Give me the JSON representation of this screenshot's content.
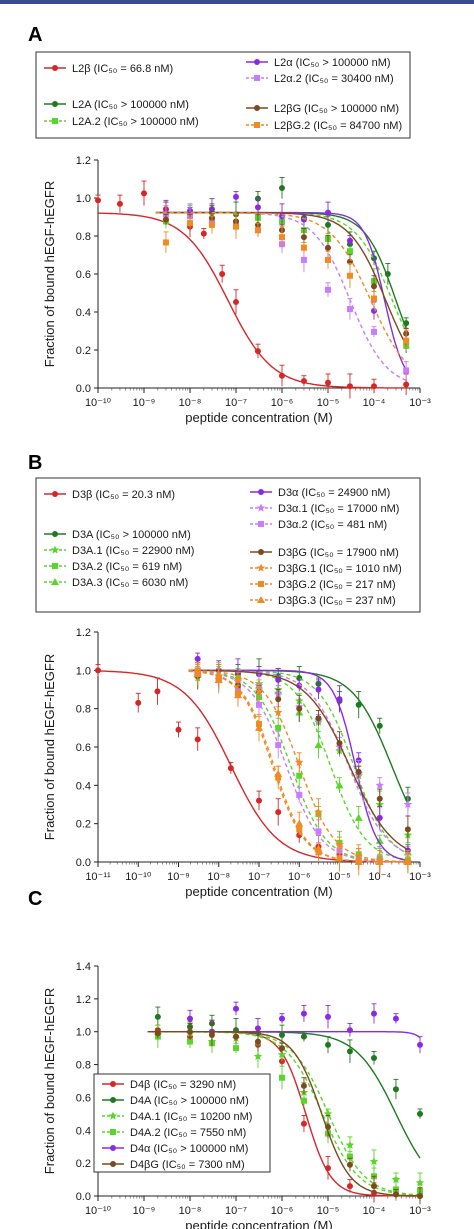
{
  "colors": {
    "red": "#d62728",
    "green": "#1f7a1f",
    "lightgreen": "#5ad52a",
    "purple": "#8a2be2",
    "lilac": "#c77dff",
    "brown": "#7b4a1e",
    "orange": "#f08a24",
    "topbar": "#3a4a8a"
  },
  "chart_data": [
    {
      "panel": "A",
      "type": "scatter",
      "xlabel": "peptide concentration (M)",
      "ylabel": "Fraction of bound hEGF-hEGFR",
      "xscale": "log",
      "xlim": [
        1e-10,
        0.001
      ],
      "ylim": [
        0,
        1.3
      ],
      "yticks": [
        "0.0",
        "0.2",
        "0.4",
        "0.6",
        "0.8",
        "1.0",
        "1.2"
      ],
      "xticks": [
        "10⁻¹⁰",
        "10⁻⁹",
        "10⁻⁸",
        "10⁻⁷",
        "10⁻⁶",
        "10⁻⁵",
        "10⁻⁴",
        "10⁻³"
      ],
      "series": [
        {
          "name": "L2β (IC₅₀ = 66.8 nM)",
          "color_key": "red",
          "marker": "circle",
          "dashed": false,
          "ic50_nM": 66.8,
          "hill": 0.9,
          "x": [
            1e-10,
            3e-10,
            1e-09,
            3e-09,
            1e-08,
            2e-08,
            5e-08,
            1e-07,
            3e-07,
            1e-06,
            3e-06,
            1e-05,
            3e-05,
            0.0001,
            0.0005
          ],
          "y": [
            1.07,
            1.05,
            1.11,
            1.02,
            0.92,
            0.88,
            0.65,
            0.49,
            0.21,
            0.07,
            0.04,
            0.03,
            0.01,
            0.01,
            0.02
          ]
        },
        {
          "name": "L2A (IC₅₀ > 100000 nM)",
          "color_key": "green",
          "marker": "circle",
          "dashed": false,
          "ic50_nM": 300000,
          "hill": 1.3,
          "x": [
            3e-09,
            1e-08,
            3e-08,
            1e-07,
            3e-07,
            1e-06,
            3e-06,
            1e-05,
            3e-05,
            0.0001,
            0.0002,
            0.0005
          ],
          "y": [
            1.0,
            1.0,
            1.0,
            0.99,
            1.08,
            1.14,
            0.97,
            0.93,
            0.82,
            0.74,
            0.65,
            0.37
          ]
        },
        {
          "name": "L2A.2 (IC₅₀ > 100000 nM)",
          "color_key": "lightgreen",
          "marker": "square",
          "dashed": true,
          "ic50_nM": 250000,
          "hill": 1.1,
          "x": [
            3e-09,
            1e-08,
            3e-08,
            1e-07,
            3e-07,
            1e-06,
            3e-06,
            1e-05,
            3e-05,
            0.0001,
            0.0005
          ],
          "y": [
            0.95,
            0.98,
            0.96,
            0.94,
            0.97,
            0.95,
            0.9,
            0.85,
            0.78,
            0.61,
            0.24
          ]
        },
        {
          "name": "L2α (IC₅₀ > 100000 nM)",
          "color_key": "purple",
          "marker": "circle",
          "dashed": false,
          "ic50_nM": 170000,
          "hill": 2.0,
          "x": [
            3e-09,
            1e-08,
            3e-08,
            1e-07,
            3e-07,
            1e-06,
            3e-06,
            1e-05,
            3e-05,
            0.0001,
            0.0005
          ],
          "y": [
            1.0,
            1.01,
            1.02,
            1.09,
            1.03,
            0.98,
            0.96,
            1.0,
            0.84,
            0.44,
            0.27
          ]
        },
        {
          "name": "L2α.2 (IC₅₀ = 30400 nM)",
          "color_key": "lilac",
          "marker": "square",
          "dashed": true,
          "ic50_nM": 30400,
          "hill": 1.1,
          "x": [
            3e-09,
            1e-08,
            3e-08,
            1e-07,
            3e-07,
            1e-06,
            3e-06,
            1e-05,
            3e-05,
            0.0001,
            0.0005
          ],
          "y": [
            0.99,
            0.98,
            0.96,
            0.94,
            0.9,
            0.82,
            0.73,
            0.56,
            0.45,
            0.32,
            0.1
          ]
        },
        {
          "name": "L2βG (IC₅₀ > 100000 nM)",
          "color_key": "brown",
          "marker": "circle",
          "dashed": false,
          "ic50_nM": 180000,
          "hill": 1.1,
          "x": [
            3e-09,
            1e-08,
            3e-08,
            1e-07,
            3e-07,
            1e-06,
            3e-06,
            1e-05,
            3e-05,
            0.0001,
            0.0005
          ],
          "y": [
            0.96,
            0.94,
            0.97,
            0.95,
            0.93,
            0.9,
            0.86,
            0.8,
            0.72,
            0.58,
            0.31
          ]
        },
        {
          "name": "L2βG.2 (IC₅₀ = 84700 nM)",
          "color_key": "orange",
          "marker": "square",
          "dashed": true,
          "ic50_nM": 84700,
          "hill": 1.0,
          "x": [
            3e-09,
            1e-08,
            3e-08,
            1e-07,
            3e-07,
            1e-06,
            3e-06,
            1e-05,
            3e-05,
            0.0001,
            0.0005
          ],
          "y": [
            0.83,
            0.94,
            0.93,
            0.92,
            0.9,
            0.86,
            0.8,
            0.73,
            0.64,
            0.51,
            0.27
          ]
        }
      ]
    },
    {
      "panel": "B",
      "type": "scatter",
      "xlabel": "peptide concentration (M)",
      "ylabel": "Fraction of bound hEGF-hEGFR",
      "xscale": "log",
      "xlim": [
        1e-11,
        0.001
      ],
      "ylim": [
        0,
        1.2
      ],
      "yticks": [
        "0.0",
        "0.2",
        "0.4",
        "0.6",
        "0.8",
        "1.0",
        "1.2"
      ],
      "xticks": [
        "10⁻¹¹",
        "10⁻¹⁰",
        "10⁻⁹",
        "10⁻⁸",
        "10⁻⁷",
        "10⁻⁶",
        "10⁻⁵",
        "10⁻⁴",
        "10⁻³"
      ],
      "series": [
        {
          "name": "D3β (IC₅₀ = 20.3 nM)",
          "color_key": "red",
          "marker": "circle",
          "dashed": false,
          "ic50_nM": 20.3,
          "hill": 0.75,
          "x": [
            1e-11,
            1e-10,
            3e-10,
            1e-09,
            3e-09,
            2e-08,
            1e-07,
            3e-07,
            1e-06,
            3e-06,
            1e-05,
            3e-05,
            0.0001,
            0.0005
          ],
          "y": [
            1.0,
            0.83,
            0.89,
            0.69,
            0.64,
            0.49,
            0.32,
            0.26,
            0.14,
            0.08,
            0.04,
            0.02,
            0.01,
            0.0
          ]
        },
        {
          "name": "D3A (IC₅₀ > 100000 nM)",
          "color_key": "green",
          "marker": "circle",
          "dashed": false,
          "ic50_nM": 200000,
          "hill": 0.9,
          "x": [
            3e-09,
            1e-08,
            3e-08,
            1e-07,
            3e-07,
            1e-06,
            3e-06,
            1e-05,
            3e-05,
            0.0001,
            0.0005
          ],
          "y": [
            1.0,
            1.0,
            0.98,
            0.99,
            0.97,
            0.96,
            0.93,
            0.84,
            0.82,
            0.71,
            0.33
          ]
        },
        {
          "name": "D3A.1 (IC₅₀ = 22900 nM)",
          "color_key": "lightgreen",
          "marker": "star",
          "dashed": true,
          "ic50_nM": 22900,
          "hill": 1.0,
          "x": [
            3e-09,
            1e-08,
            3e-08,
            1e-07,
            3e-07,
            1e-06,
            3e-06,
            1e-05,
            3e-05,
            0.0001,
            0.0005
          ],
          "y": [
            0.96,
            0.97,
            0.95,
            0.93,
            0.9,
            0.84,
            0.73,
            0.58,
            0.45,
            0.3,
            0.14
          ]
        },
        {
          "name": "D3A.2 (IC₅₀ = 619 nM)",
          "color_key": "lightgreen",
          "marker": "square",
          "dashed": true,
          "ic50_nM": 619,
          "hill": 1.0,
          "x": [
            3e-09,
            1e-08,
            3e-08,
            1e-07,
            3e-07,
            1e-06,
            3e-06,
            1e-05,
            3e-05,
            0.0001,
            0.0005
          ],
          "y": [
            0.98,
            0.96,
            0.92,
            0.86,
            0.7,
            0.45,
            0.25,
            0.1,
            0.04,
            0.02,
            0.01
          ]
        },
        {
          "name": "D3A.3 (IC₅₀ = 6030 nM)",
          "color_key": "lightgreen",
          "marker": "triangle",
          "dashed": true,
          "ic50_nM": 6030,
          "hill": 1.0,
          "x": [
            3e-09,
            1e-08,
            3e-08,
            1e-07,
            3e-07,
            1e-06,
            3e-06,
            1e-05,
            3e-05,
            0.0001,
            0.0005
          ],
          "y": [
            0.99,
            0.95,
            0.97,
            0.92,
            0.89,
            0.78,
            0.61,
            0.4,
            0.23,
            0.11,
            0.05
          ]
        },
        {
          "name": "D3α (IC₅₀ = 24900 nM)",
          "color_key": "purple",
          "marker": "circle",
          "dashed": false,
          "ic50_nM": 24900,
          "hill": 1.6,
          "x": [
            3e-09,
            1e-08,
            3e-08,
            1e-07,
            3e-07,
            1e-06,
            3e-06,
            1e-05,
            3e-05,
            0.0001,
            0.0005
          ],
          "y": [
            1.06,
            1.0,
            0.99,
            0.98,
            0.95,
            0.92,
            0.9,
            0.85,
            0.53,
            0.23,
            0.06
          ]
        },
        {
          "name": "D3α.1 (IC₅₀ = 17000 nM)",
          "color_key": "lilac",
          "marker": "star",
          "dashed": true,
          "ic50_nM": 17000,
          "hill": 0.9,
          "x": [
            3e-09,
            1e-08,
            3e-08,
            1e-07,
            3e-07,
            1e-06,
            3e-06,
            1e-05,
            3e-05,
            0.0001,
            0.0005
          ],
          "y": [
            0.98,
            0.95,
            0.94,
            0.92,
            0.88,
            0.81,
            0.74,
            0.6,
            0.46,
            0.4,
            0.3
          ]
        },
        {
          "name": "D3α.2 (IC₅₀ = 481 nM)",
          "color_key": "lilac",
          "marker": "square",
          "dashed": true,
          "ic50_nM": 481,
          "hill": 1.0,
          "x": [
            3e-09,
            1e-08,
            3e-08,
            1e-07,
            3e-07,
            1e-06,
            3e-06,
            1e-05,
            3e-05,
            0.0001,
            0.0005
          ],
          "y": [
            0.98,
            0.95,
            0.91,
            0.82,
            0.61,
            0.35,
            0.16,
            0.06,
            0.02,
            0.01,
            0.0
          ]
        },
        {
          "name": "D3βG (IC₅₀ = 17900 nM)",
          "color_key": "brown",
          "marker": "circle",
          "dashed": false,
          "ic50_nM": 17900,
          "hill": 0.8,
          "x": [
            3e-09,
            1e-08,
            3e-08,
            1e-07,
            3e-07,
            1e-06,
            3e-06,
            1e-05,
            3e-05,
            0.0001,
            0.0005
          ],
          "y": [
            0.97,
            0.96,
            0.92,
            0.89,
            0.85,
            0.8,
            0.75,
            0.62,
            0.47,
            0.33,
            0.17
          ]
        },
        {
          "name": "D3βG.1 (IC₅₀ = 1010 nM)",
          "color_key": "orange",
          "marker": "star",
          "dashed": true,
          "ic50_nM": 1010,
          "hill": 1.0,
          "x": [
            3e-09,
            1e-08,
            3e-08,
            1e-07,
            3e-07,
            1e-06,
            3e-06,
            1e-05,
            3e-05,
            0.0001,
            0.0005
          ],
          "y": [
            0.99,
            0.97,
            0.95,
            0.89,
            0.78,
            0.52,
            0.26,
            0.09,
            0.03,
            0.01,
            0.0
          ]
        },
        {
          "name": "D3βG.2 (IC₅₀ = 217 nM)",
          "color_key": "orange",
          "marker": "square",
          "dashed": true,
          "ic50_nM": 217,
          "hill": 1.1,
          "x": [
            3e-09,
            1e-08,
            3e-08,
            1e-07,
            3e-07,
            1e-06,
            3e-06,
            1e-05,
            3e-05,
            0.0001,
            0.0005
          ],
          "y": [
            1.0,
            0.96,
            0.88,
            0.72,
            0.44,
            0.17,
            0.05,
            0.02,
            0.0,
            0.0,
            0.0
          ]
        },
        {
          "name": "D3βG.3 (IC₅₀ = 237 nM)",
          "color_key": "orange",
          "marker": "triangle",
          "dashed": true,
          "ic50_nM": 237,
          "hill": 1.1,
          "x": [
            3e-09,
            1e-08,
            3e-08,
            1e-07,
            3e-07,
            1e-06,
            3e-06,
            1e-05,
            3e-05,
            0.0001,
            0.0005
          ],
          "y": [
            0.98,
            0.95,
            0.87,
            0.7,
            0.46,
            0.2,
            0.07,
            0.02,
            0.0,
            0.0,
            0.0
          ]
        }
      ]
    },
    {
      "panel": "C",
      "type": "scatter",
      "xlabel": "peptide concentration (M)",
      "ylabel": "Fraction of bound hEGF-hEGFR",
      "xscale": "log",
      "xlim": [
        1e-10,
        0.001
      ],
      "ylim": [
        0,
        1.4
      ],
      "yticks": [
        "0.0",
        "0.2",
        "0.4",
        "0.6",
        "0.8",
        "1.0",
        "1.2",
        "1.4"
      ],
      "xticks": [
        "10⁻¹⁰",
        "10⁻⁹",
        "10⁻⁸",
        "10⁻⁷",
        "10⁻⁶",
        "10⁻⁵",
        "10⁻⁴",
        "10⁻³"
      ],
      "series": [
        {
          "name": "D4β (IC₅₀ = 3290 nM)",
          "color_key": "red",
          "marker": "circle",
          "dashed": false,
          "ic50_nM": 3290,
          "hill": 1.6,
          "x": [
            2e-09,
            1e-08,
            3e-08,
            1e-07,
            3e-07,
            1e-06,
            3e-06,
            1e-05,
            3e-05,
            0.0001,
            0.0003,
            0.001
          ],
          "y": [
            1.01,
            0.97,
            1.0,
            0.97,
            0.92,
            0.82,
            0.44,
            0.17,
            0.06,
            0.02,
            0.01,
            0.0
          ]
        },
        {
          "name": "D4A (IC₅₀ > 100000 nM)",
          "color_key": "green",
          "marker": "circle",
          "dashed": false,
          "ic50_nM": 300000,
          "hill": 1.0,
          "x": [
            2e-09,
            1e-08,
            3e-08,
            1e-07,
            3e-07,
            1e-06,
            3e-06,
            1e-05,
            3e-05,
            0.0001,
            0.0003,
            0.001
          ],
          "y": [
            1.09,
            1.03,
            1.05,
            1.01,
            0.99,
            0.98,
            0.97,
            0.92,
            0.88,
            0.84,
            0.65,
            0.5
          ]
        },
        {
          "name": "D4A.1 (IC₅₀ = 10200 nM)",
          "color_key": "lightgreen",
          "marker": "star",
          "dashed": true,
          "ic50_nM": 10200,
          "hill": 1.1,
          "x": [
            2e-09,
            1e-08,
            3e-08,
            1e-07,
            3e-07,
            1e-06,
            3e-06,
            1e-05,
            3e-05,
            0.0001,
            0.0003,
            0.001
          ],
          "y": [
            0.98,
            0.99,
            0.94,
            0.96,
            0.85,
            0.86,
            0.63,
            0.5,
            0.31,
            0.21,
            0.1,
            0.08
          ]
        },
        {
          "name": "D4A.2 (IC₅₀ = 7550 nM)",
          "color_key": "lightgreen",
          "marker": "square",
          "dashed": true,
          "ic50_nM": 7550,
          "hill": 1.1,
          "x": [
            2e-09,
            1e-08,
            3e-08,
            1e-07,
            3e-07,
            1e-06,
            3e-06,
            1e-05,
            3e-05,
            0.0001,
            0.0003,
            0.001
          ],
          "y": [
            0.97,
            0.94,
            0.93,
            0.9,
            0.6,
            0.72,
            0.58,
            0.38,
            0.24,
            0.12,
            0.04,
            0.03
          ]
        },
        {
          "name": "D4α (IC₅₀ > 100000 nM)",
          "color_key": "purple",
          "marker": "circle",
          "dashed": false,
          "ic50_nM": 3000000,
          "hill": 3.0,
          "x": [
            1e-08,
            3e-08,
            1e-07,
            3e-07,
            1e-06,
            3e-06,
            1e-05,
            3e-05,
            0.0001,
            0.0003,
            0.001
          ],
          "y": [
            1.08,
            1.0,
            1.14,
            1.02,
            1.08,
            1.11,
            1.09,
            1.01,
            1.11,
            1.08,
            0.92
          ]
        },
        {
          "name": "D4βG (IC₅₀ = 7300 nM)",
          "color_key": "brown",
          "marker": "circle",
          "dashed": false,
          "ic50_nM": 7300,
          "hill": 1.4,
          "x": [
            2e-09,
            1e-08,
            3e-08,
            1e-07,
            3e-07,
            1e-06,
            3e-06,
            1e-05,
            3e-05,
            0.0001,
            0.0003,
            0.001
          ],
          "y": [
            0.99,
            1.0,
            0.98,
            0.97,
            0.94,
            0.9,
            0.67,
            0.42,
            0.19,
            0.06,
            0.01,
            0.0
          ]
        }
      ]
    }
  ]
}
